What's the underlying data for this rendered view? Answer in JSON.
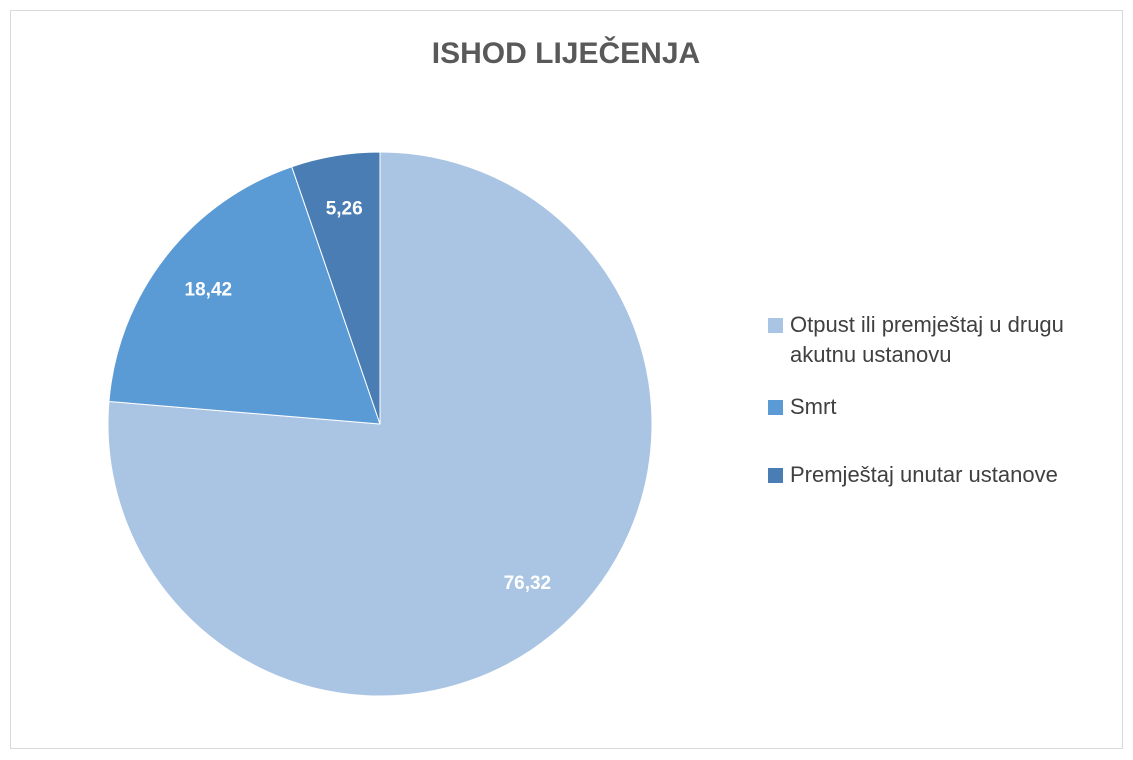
{
  "chart_data": {
    "type": "pie",
    "title": "ISHOD LIJEČENJA",
    "categories": [
      "Otpust ili premještaj u drugu akutnu ustanovu",
      "Smrt",
      "Premještaj unutar ustanove"
    ],
    "values": [
      76.32,
      18.42,
      5.26
    ],
    "value_labels": [
      "76,32",
      "18,42",
      "5,26"
    ],
    "colors": [
      "#aac4e4",
      "#5b9bd5",
      "#4a7db4"
    ],
    "legend": "right"
  }
}
